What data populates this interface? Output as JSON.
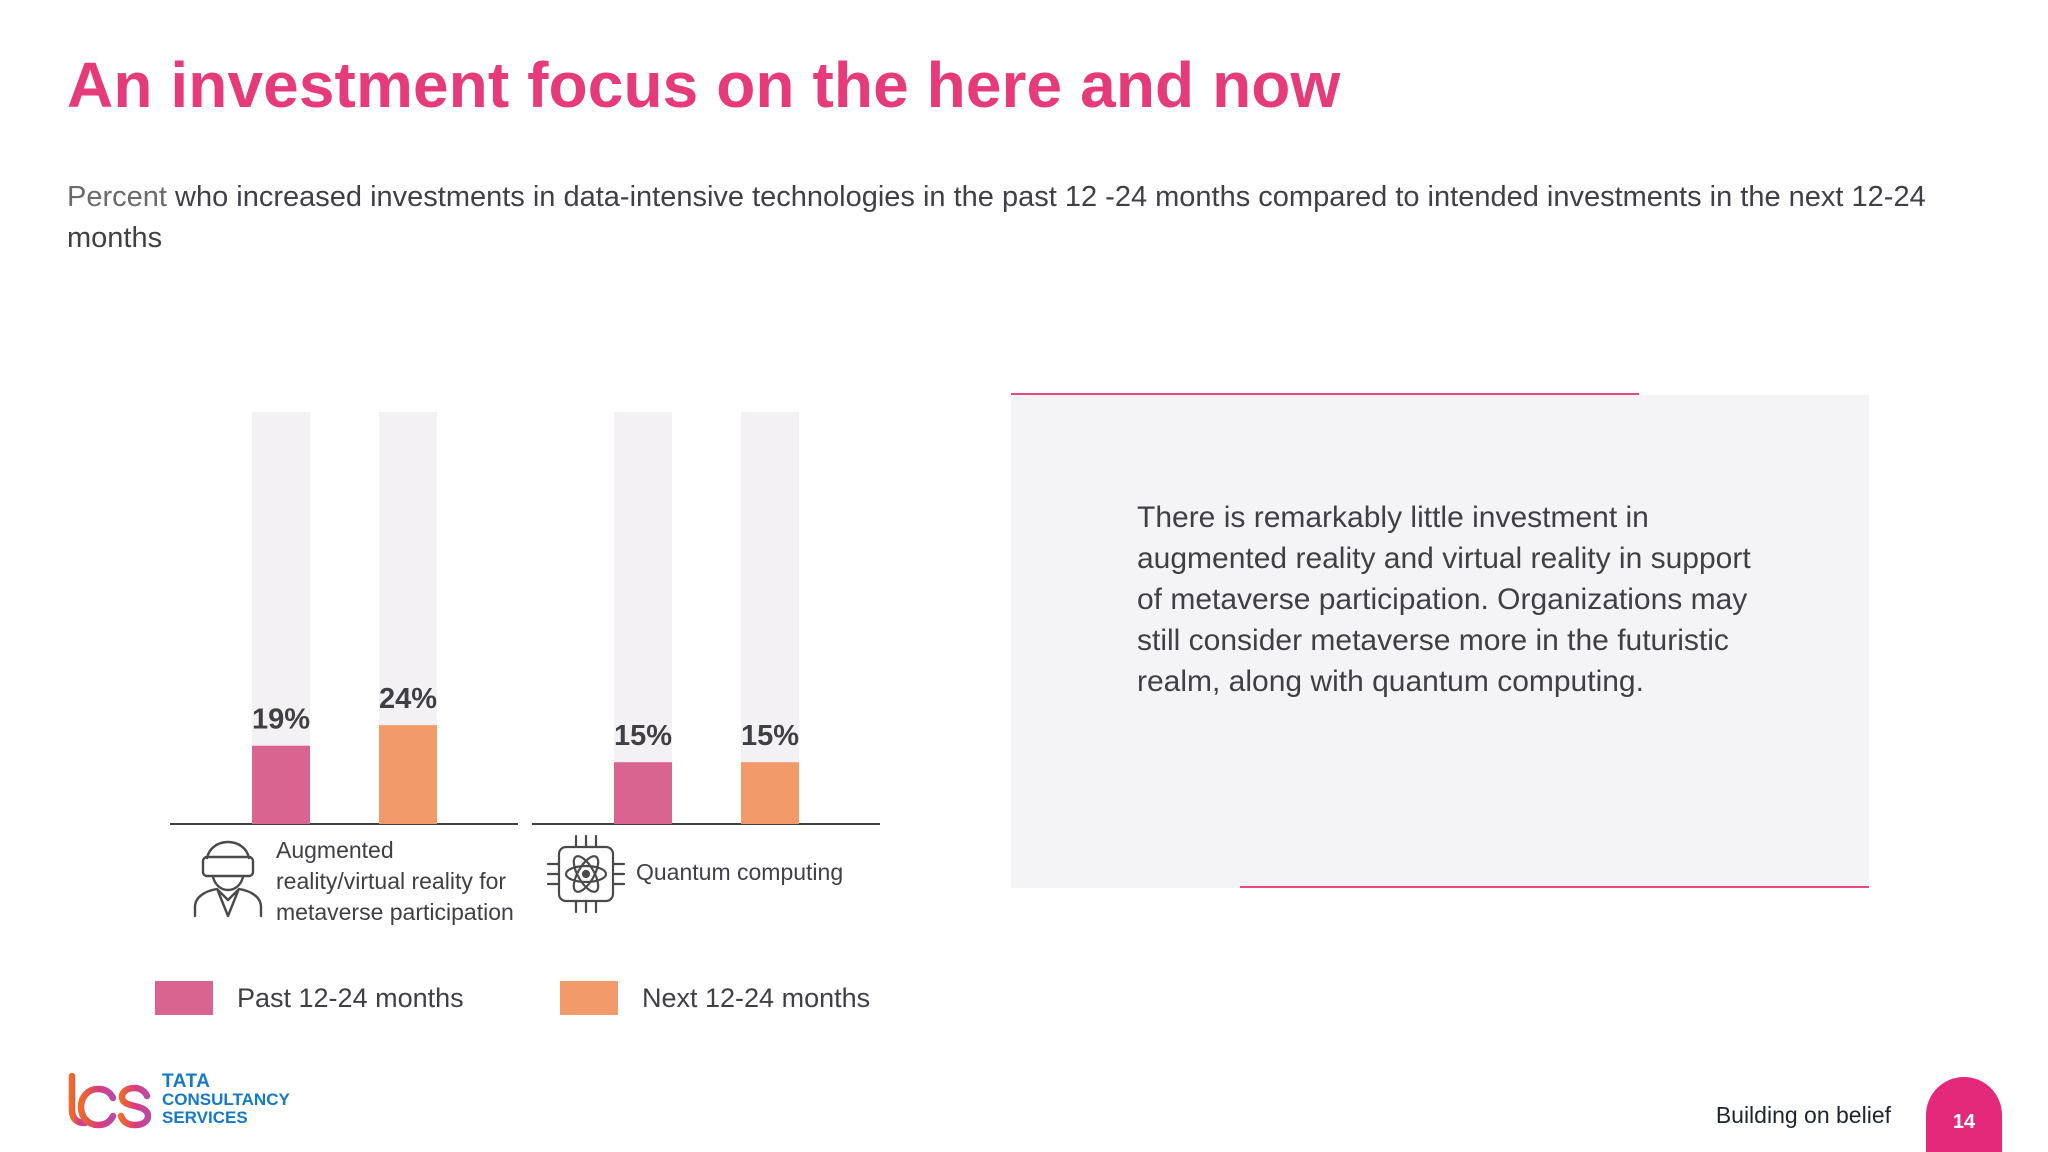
{
  "header": {
    "title": "An investment focus on the here and now",
    "subtitle_prefix": "Percent",
    "subtitle_body": " who increased investments in data-intensive technologies in the past 12 -24 months compared to intended investments in the next 12-24 months"
  },
  "chart_data": {
    "type": "bar",
    "categories": [
      "Augmented reality/virtual reality for metaverse participation",
      "Quantum computing"
    ],
    "series": [
      {
        "name": "Past 12-24 months",
        "values": [
          19,
          15
        ],
        "labels": [
          "19%",
          "15%"
        ],
        "color": "#d9648f"
      },
      {
        "name": "Next 12-24 months",
        "values": [
          24,
          15
        ],
        "labels": [
          "24%",
          "15%"
        ],
        "color": "#f29a69"
      }
    ],
    "ylim": [
      0,
      100
    ],
    "background_bar_color": "#f3f1f4",
    "axis_color": "#3f3f46",
    "grid": false,
    "legend_position": "bottom",
    "icons": [
      "vr-user-icon",
      "quantum-chip-icon"
    ]
  },
  "insight": {
    "text": "There is remarkably little investment in augmented reality and virtual reality in support of metaverse participation. Organizations may still consider metaverse more in the futuristic realm, along with quantum computing."
  },
  "footer": {
    "brand_top": "TATA",
    "brand_line_2": "CONSULTANCY",
    "brand_line_3": "SERVICES",
    "tagline": "Building on belief",
    "page_number": "14"
  },
  "colors": {
    "title": "#e63b7a",
    "accent": "#e5297a",
    "brand_blue": "#1479c7",
    "insight_rule": "#e9497d",
    "insight_background": "#f4f4f6"
  }
}
